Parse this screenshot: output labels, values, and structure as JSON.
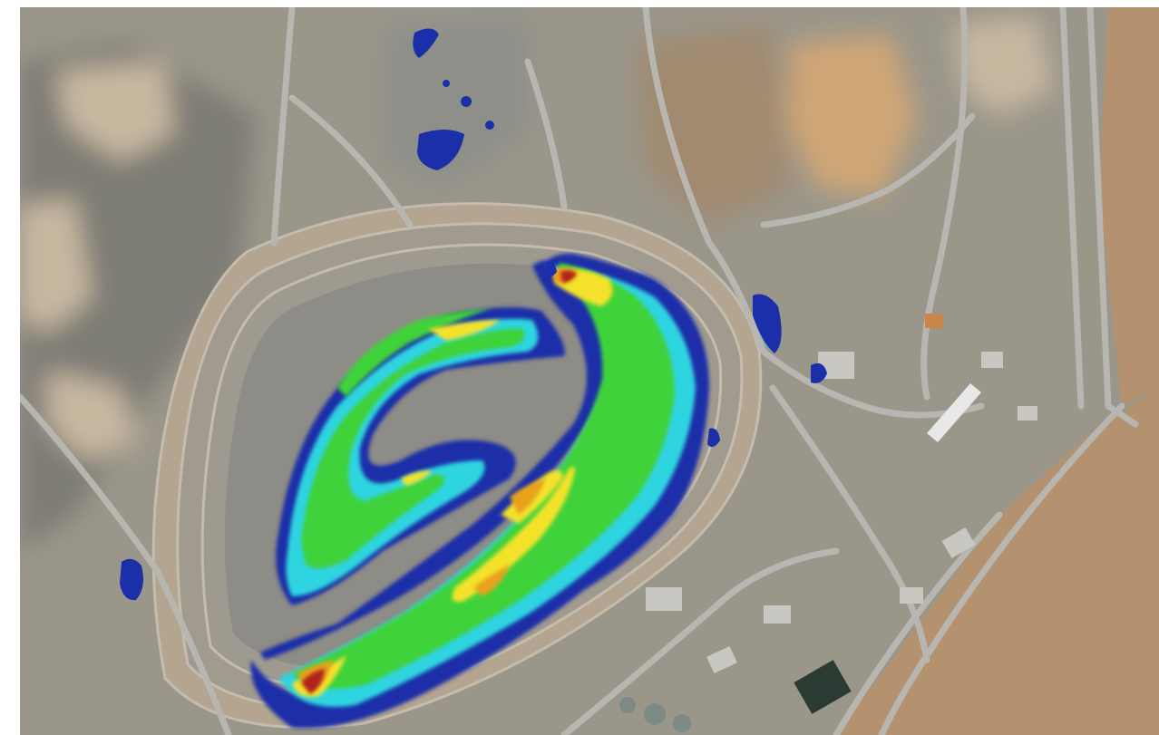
{
  "map": {
    "heading": "",
    "imagery": "aerial-satellite",
    "overlay": "heat-map",
    "colors": {
      "terrain": "#9a968a",
      "terrain_light": "#c8b8a0",
      "desert": "#b49270",
      "road": "#b8b6b0",
      "pit_floor": "#8e8c86",
      "heat_low": "#1a2fa8",
      "heat_cyan": "#2fd4e0",
      "heat_green": "#3fd23a",
      "heat_yellow": "#f4e22a",
      "heat_orange": "#e8a21c",
      "heat_high": "#b0221a"
    }
  }
}
